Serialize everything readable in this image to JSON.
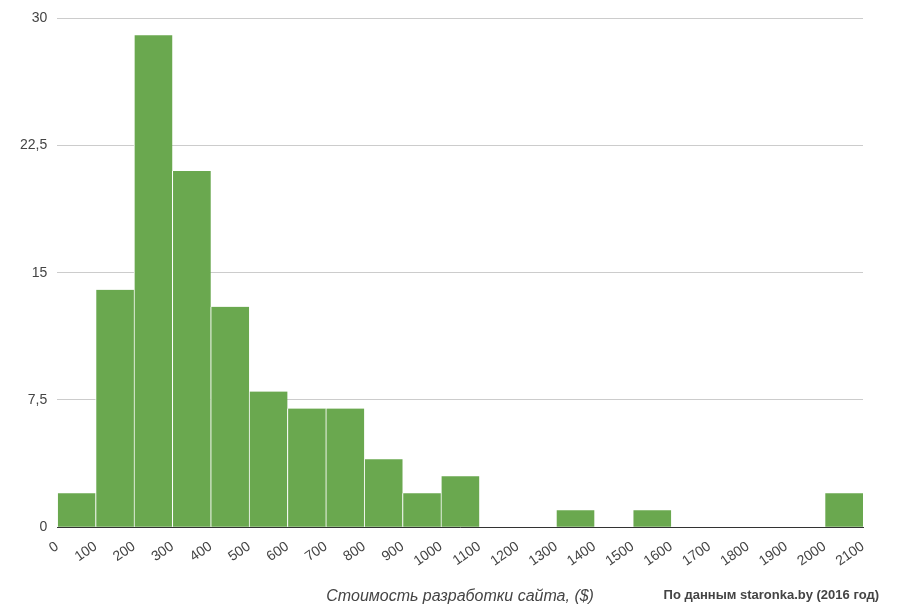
{
  "chart_data": {
    "type": "histogram",
    "x_label": "Стоимость разработки сайта, ($)",
    "annotation": "По данным staronka.by (2016 год)",
    "bins": [
      0,
      100,
      200,
      300,
      400,
      500,
      600,
      700,
      800,
      900,
      1000,
      1100,
      1200,
      1300,
      1400,
      1500,
      1600,
      1700,
      1800,
      1900,
      2000,
      2100
    ],
    "values": [
      2,
      14,
      29,
      21,
      13,
      8,
      7,
      7,
      4,
      2,
      3,
      0,
      0,
      1,
      0,
      1,
      0,
      0,
      0,
      0,
      2
    ],
    "color": "#6aa84f",
    "xlim": [
      0,
      2100
    ],
    "xticks": [
      0,
      100,
      200,
      300,
      400,
      500,
      600,
      700,
      800,
      900,
      1000,
      1100,
      1200,
      1300,
      1400,
      1500,
      1600,
      1700,
      1800,
      1900,
      2000,
      2100
    ],
    "ylim": [
      0,
      30
    ],
    "yticks": [
      0,
      {
        "value": 7.5,
        "label": "7,5"
      },
      15,
      {
        "value": 22.5,
        "label": "22,5"
      },
      30
    ],
    "grid": true
  }
}
